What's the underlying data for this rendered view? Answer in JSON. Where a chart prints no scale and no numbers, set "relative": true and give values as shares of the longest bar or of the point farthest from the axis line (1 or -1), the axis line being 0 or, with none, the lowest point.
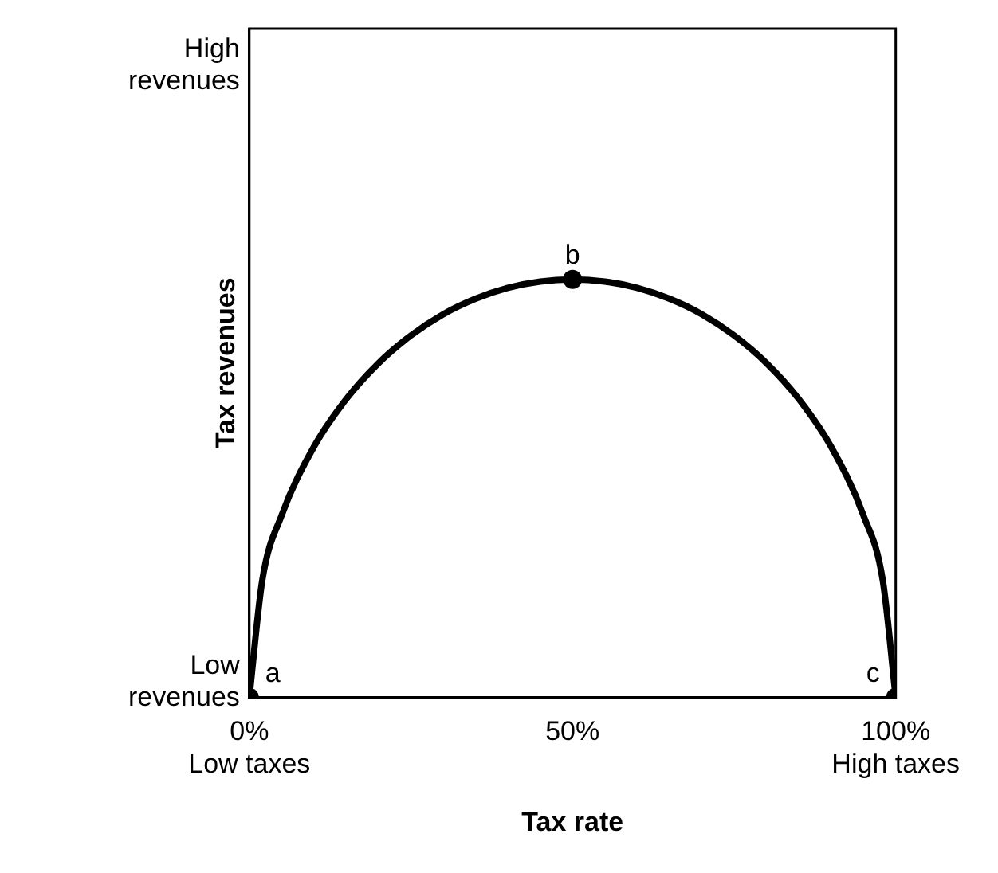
{
  "chart_data": {
    "type": "line",
    "xlabel": "Tax rate",
    "ylabel": "Tax revenues",
    "relative": true,
    "xlim": [
      0,
      100
    ],
    "xticks": [
      {
        "value": 0,
        "label": "0%\nLow taxes"
      },
      {
        "value": 50,
        "label": "50%"
      },
      {
        "value": 100,
        "label": "100%\nHigh taxes"
      }
    ],
    "grid": false,
    "legend": false,
    "series": [
      {
        "type": "line",
        "color": "#000000",
        "marker": "none",
        "x": [
          0,
          2,
          5,
          10,
          15,
          20,
          25,
          30,
          35,
          40,
          45,
          50,
          55,
          60,
          65,
          70,
          75,
          80,
          85,
          90,
          95,
          98,
          100
        ],
        "values": [
          0,
          0.28,
          0.436,
          0.6,
          0.714,
          0.8,
          0.866,
          0.917,
          0.954,
          0.98,
          0.995,
          1,
          0.995,
          0.98,
          0.954,
          0.917,
          0.866,
          0.8,
          0.714,
          0.6,
          0.436,
          0.28,
          0
        ]
      },
      {
        "type": "scatter",
        "color": "#000000",
        "marker": "circle",
        "x": [
          0,
          50,
          100
        ],
        "values": [
          0,
          1,
          0
        ]
      }
    ],
    "annotations": [
      "Low\nrevenues",
      "High\nrevenues",
      {
        "text": "a",
        "x": 0,
        "y": 0
      },
      {
        "text": "b",
        "x": 50,
        "y": 1
      },
      {
        "text": "c",
        "x": 100,
        "y": 0
      }
    ]
  }
}
